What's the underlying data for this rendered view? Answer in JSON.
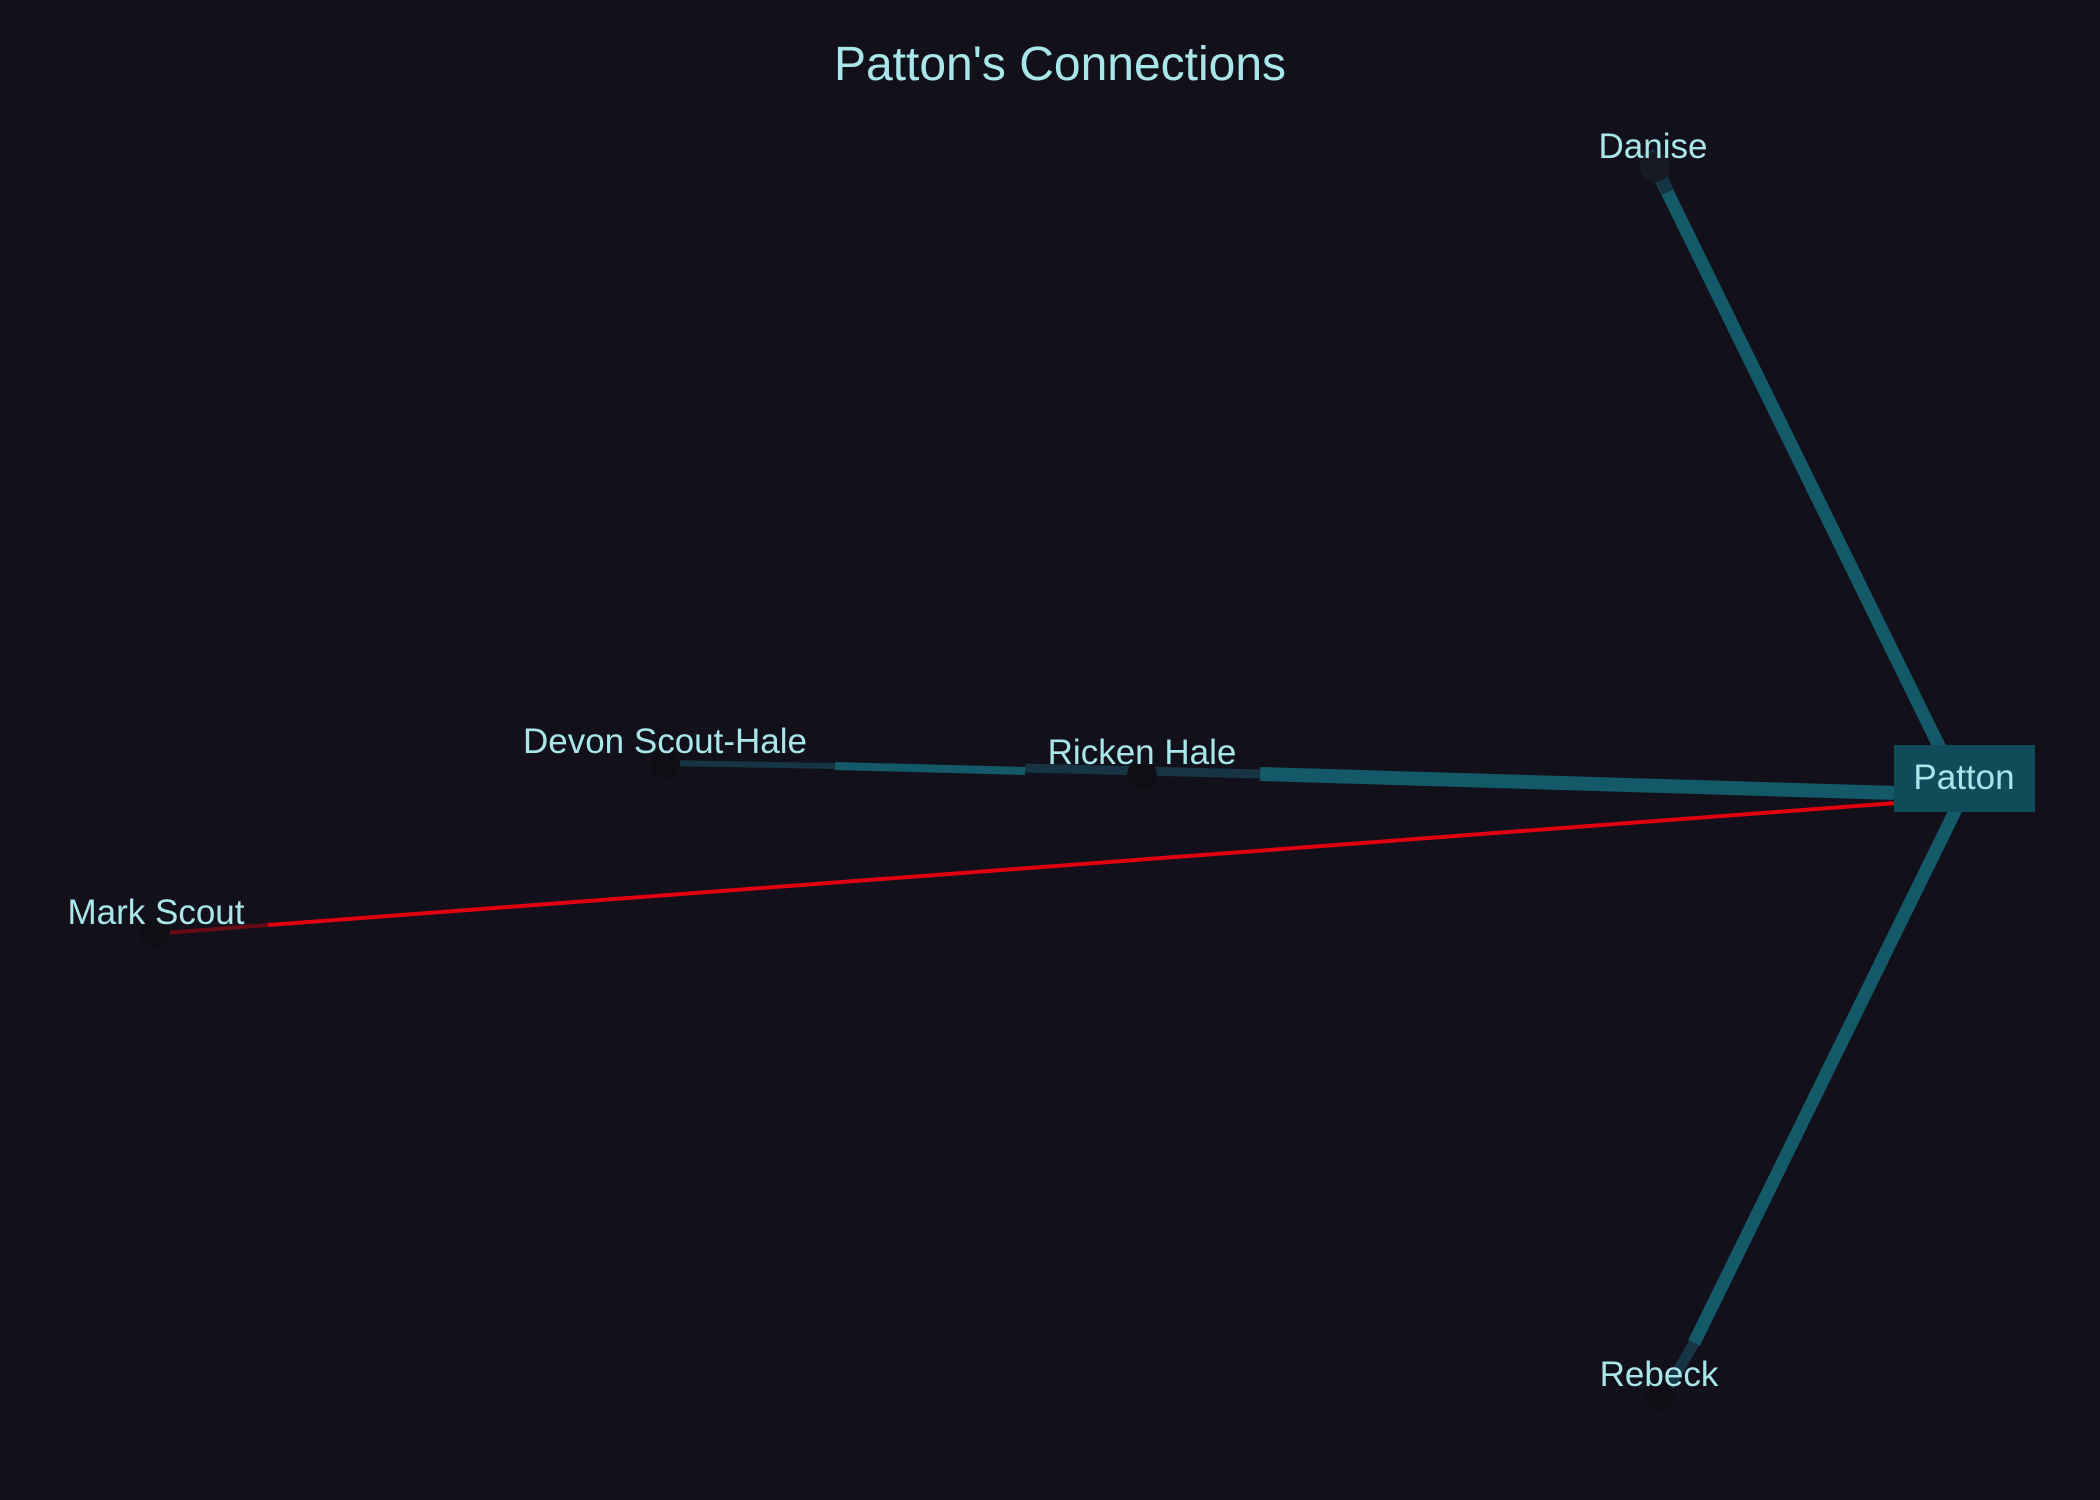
{
  "diagram": {
    "title": "Patton's Connections",
    "center": "Patton",
    "nodes": [
      {
        "id": "danise",
        "label": "Danise"
      },
      {
        "id": "devon",
        "label": "Devon Scout-Hale"
      },
      {
        "id": "ricken",
        "label": "Ricken Hale"
      },
      {
        "id": "mark",
        "label": "Mark Scout"
      },
      {
        "id": "rebeck",
        "label": "Rebeck"
      },
      {
        "id": "patton",
        "label": "Patton"
      }
    ],
    "edges": [
      {
        "from": "patton",
        "to": "danise",
        "color": "#135968"
      },
      {
        "from": "patton",
        "to": "ricken",
        "color": "#135968"
      },
      {
        "from": "ricken",
        "to": "devon",
        "color": "#135968"
      },
      {
        "from": "patton",
        "to": "mark",
        "color": "#e00010"
      },
      {
        "from": "patton",
        "to": "rebeck",
        "color": "#135968"
      }
    ],
    "colors": {
      "background": "#12111b",
      "text": "#a8e6ea",
      "link": "#135968",
      "highlight_link": "#e00010",
      "center_box": "#0f4b58"
    }
  }
}
